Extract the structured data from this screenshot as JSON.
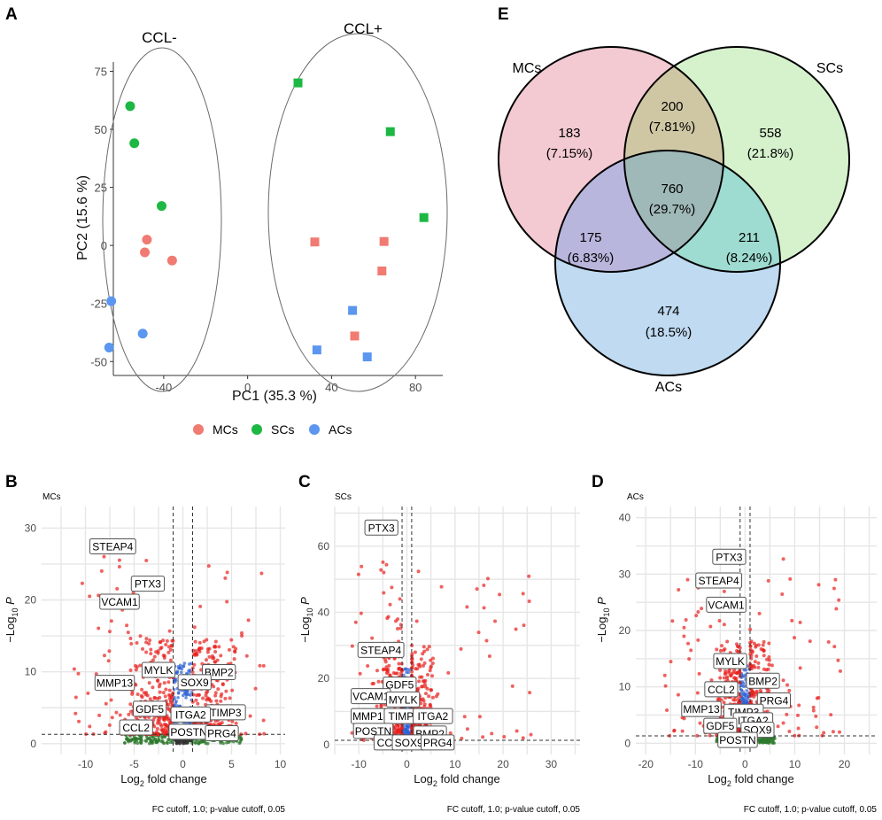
{
  "colors": {
    "MCs": "#f17a72",
    "SCs": "#1cb843",
    "ACs": "#5b96f0",
    "up": "#e8201c",
    "ns": "#2d7a2d",
    "fc": "#2e62d6"
  },
  "panels": {
    "A": "A",
    "B": "B",
    "C": "C",
    "D": "D",
    "E": "E"
  },
  "legend": [
    {
      "label": "MCs",
      "color": "#f17a72"
    },
    {
      "label": "SCs",
      "color": "#1cb843"
    },
    {
      "label": "ACs",
      "color": "#5b96f0"
    }
  ],
  "chart_data": [
    {
      "id": "pca",
      "type": "scatter",
      "xlabel": "PC1 (35.3 %)",
      "ylabel": "PC2 (15.6 %)",
      "xlim": [
        -64,
        93
      ],
      "ylim": [
        -56,
        79
      ],
      "xticks": [
        -40,
        0,
        40,
        80
      ],
      "yticks": [
        75,
        50,
        25,
        0,
        -25,
        -50
      ],
      "groups": [
        {
          "label": "CCL-"
        },
        {
          "label": "CCL+"
        }
      ],
      "series": [
        {
          "name": "MCs",
          "shape": "circle",
          "points": [
            [
              -48,
              2.5
            ],
            [
              -49,
              -3
            ],
            [
              -36,
              -6.5
            ],
            [
              32,
              1.5
            ],
            [
              65,
              1.7
            ],
            [
              64,
              -11
            ],
            [
              51,
              -39
            ]
          ]
        },
        {
          "name": "SCs",
          "shape": "circle",
          "points": [
            [
              -56,
              60
            ],
            [
              -54,
              44
            ],
            [
              -41,
              17
            ],
            [
              24,
              70
            ],
            [
              68,
              49
            ],
            [
              84,
              12
            ]
          ]
        },
        {
          "name": "ACs",
          "shape": "circle",
          "points": [
            [
              -65,
              -24
            ],
            [
              -66,
              -44
            ],
            [
              -50,
              -38
            ],
            [
              50,
              -28
            ],
            [
              33,
              -45
            ],
            [
              57,
              -48
            ]
          ]
        }
      ],
      "shape_by_group": {
        "CCL-": "circle",
        "CCL+": "square"
      },
      "point_groups": {
        "MCs": [
          "CCL-",
          "CCL-",
          "CCL-",
          "CCL+",
          "CCL+",
          "CCL+",
          "CCL+"
        ],
        "SCs": [
          "CCL-",
          "CCL-",
          "CCL-",
          "CCL+",
          "CCL+",
          "CCL+"
        ],
        "ACs": [
          "CCL-",
          "CCL-",
          "CCL-",
          "CCL+",
          "CCL+",
          "CCL+"
        ]
      }
    },
    {
      "id": "volcano-mcs",
      "type": "scatter",
      "subtitle": "MCs",
      "xlabel_main": "Log",
      "xlabel_sub": "2",
      "xlabel_rest": " fold change",
      "ylabel_main": "−Log",
      "ylabel_sub": "10",
      "ylabel_rest": " P",
      "xlim": [
        -14.5,
        10.5
      ],
      "ylim": [
        -1.5,
        33
      ],
      "xticks": [
        -10,
        -5,
        0,
        5,
        10
      ],
      "yticks": [
        0,
        10,
        20,
        30
      ],
      "fc_cutoff": 1.0,
      "p_cutoff_y": 1.3,
      "caption": "FC cutoff, 1.0; p-value cutoff, 0.05",
      "labels": [
        {
          "gene": "STEAP4",
          "x": -7.2,
          "y": 27.4
        },
        {
          "gene": "PTX3",
          "x": -3.6,
          "y": 22.2
        },
        {
          "gene": "VCAM1",
          "x": -6.5,
          "y": 19.7
        },
        {
          "gene": "MYLK",
          "x": -2.5,
          "y": 10.2
        },
        {
          "gene": "BMP2",
          "x": 3.7,
          "y": 9.9
        },
        {
          "gene": "MMP13",
          "x": -7.0,
          "y": 8.4
        },
        {
          "gene": "SOX9",
          "x": 1.2,
          "y": 8.5
        },
        {
          "gene": "GDF5",
          "x": -3.4,
          "y": 4.8
        },
        {
          "gene": "TIMP3",
          "x": 4.4,
          "y": 4.3
        },
        {
          "gene": "ITGA2",
          "x": 0.8,
          "y": 4.0
        },
        {
          "gene": "CCL2",
          "x": -4.8,
          "y": 2.2
        },
        {
          "gene": "POSTN",
          "x": 0.6,
          "y": 1.6
        },
        {
          "gene": "PRG4",
          "x": 4.0,
          "y": 1.4
        }
      ]
    },
    {
      "id": "volcano-scs",
      "type": "scatter",
      "subtitle": "SCs",
      "xlabel_main": "Log",
      "xlabel_sub": "2",
      "xlabel_rest": " fold change",
      "ylabel_main": "−Log",
      "ylabel_sub": "10",
      "ylabel_rest": " P",
      "xlim": [
        -15,
        36
      ],
      "ylim": [
        -3,
        72
      ],
      "xticks": [
        -10,
        0,
        10,
        20,
        30
      ],
      "yticks": [
        0,
        20,
        40,
        60
      ],
      "fc_cutoff": 1.0,
      "p_cutoff_y": 1.3,
      "caption": "FC cutoff, 1.0; p-value cutoff, 0.05",
      "labels": [
        {
          "gene": "PTX3",
          "x": -5.3,
          "y": 65.5
        },
        {
          "gene": "STEAP4",
          "x": -5.4,
          "y": 28.5
        },
        {
          "gene": "GDF5",
          "x": -1.5,
          "y": 18.0
        },
        {
          "gene": "VCAM1",
          "x": -7.5,
          "y": 14.5
        },
        {
          "gene": "MYLK",
          "x": -0.8,
          "y": 13.5
        },
        {
          "gene": "MMP13",
          "x": -7.5,
          "y": 8.5
        },
        {
          "gene": "TIMP3",
          "x": -0.6,
          "y": 8.5
        },
        {
          "gene": "ITGA2",
          "x": 5.4,
          "y": 8.5
        },
        {
          "gene": "POSTN",
          "x": -7.0,
          "y": 4.0
        },
        {
          "gene": "BMP2",
          "x": 4.8,
          "y": 3.2
        },
        {
          "gene": "CCL2",
          "x": -3.4,
          "y": 0.5
        },
        {
          "gene": "SOX9",
          "x": 0.4,
          "y": 0.5
        },
        {
          "gene": "PRG4",
          "x": 6.4,
          "y": 0.5
        }
      ]
    },
    {
      "id": "volcano-acs",
      "type": "scatter",
      "subtitle": "ACs",
      "xlabel_main": "Log",
      "xlabel_sub": "2",
      "xlabel_rest": " fold change",
      "ylabel_main": "−Log",
      "ylabel_sub": "10",
      "ylabel_rest": " P",
      "xlim": [
        -22,
        26.5
      ],
      "ylim": [
        -2,
        42
      ],
      "xticks": [
        -20,
        -10,
        0,
        10,
        20
      ],
      "yticks": [
        0,
        10,
        20,
        30,
        40
      ],
      "fc_cutoff": 1.0,
      "p_cutoff_y": 1.3,
      "caption": "FC cutoff, 1.0; p-value cutoff, 0.05",
      "labels": [
        {
          "gene": "PTX3",
          "x": -3.2,
          "y": 33.0
        },
        {
          "gene": "STEAP4",
          "x": -5.3,
          "y": 28.8
        },
        {
          "gene": "VCAM1",
          "x": -3.8,
          "y": 24.5
        },
        {
          "gene": "MYLK",
          "x": -3.0,
          "y": 14.5
        },
        {
          "gene": "BMP2",
          "x": 3.6,
          "y": 11.0
        },
        {
          "gene": "CCL2",
          "x": -4.8,
          "y": 9.5
        },
        {
          "gene": "PRG4",
          "x": 5.8,
          "y": 7.5
        },
        {
          "gene": "MMP13",
          "x": -8.8,
          "y": 6.0
        },
        {
          "gene": "TIMP3",
          "x": -0.3,
          "y": 5.5
        },
        {
          "gene": "ITGA2",
          "x": 1.6,
          "y": 4.0
        },
        {
          "gene": "GDF5",
          "x": -5.0,
          "y": 3.0
        },
        {
          "gene": "SOX9",
          "x": 2.5,
          "y": 2.3
        },
        {
          "gene": "POSTN",
          "x": -1.5,
          "y": 0.5
        }
      ]
    },
    {
      "id": "venn",
      "type": "venn",
      "sets": [
        {
          "name": "MCs",
          "color": "#f3c9d2"
        },
        {
          "name": "SCs",
          "color": "#d6f2cd"
        },
        {
          "name": "ACs",
          "color": "#bfdaf1"
        }
      ],
      "regions": [
        {
          "key": "mc",
          "count": "183",
          "pct": "(7.15%)"
        },
        {
          "key": "mc_sc",
          "count": "200",
          "pct": "(7.81%)"
        },
        {
          "key": "sc",
          "count": "558",
          "pct": "(21.8%)"
        },
        {
          "key": "all",
          "count": "760",
          "pct": "(29.7%)"
        },
        {
          "key": "mc_ac",
          "count": "175",
          "pct": "(6.83%)"
        },
        {
          "key": "sc_ac",
          "count": "211",
          "pct": "(8.24%)"
        },
        {
          "key": "ac",
          "count": "474",
          "pct": "(18.5%)"
        }
      ]
    }
  ]
}
